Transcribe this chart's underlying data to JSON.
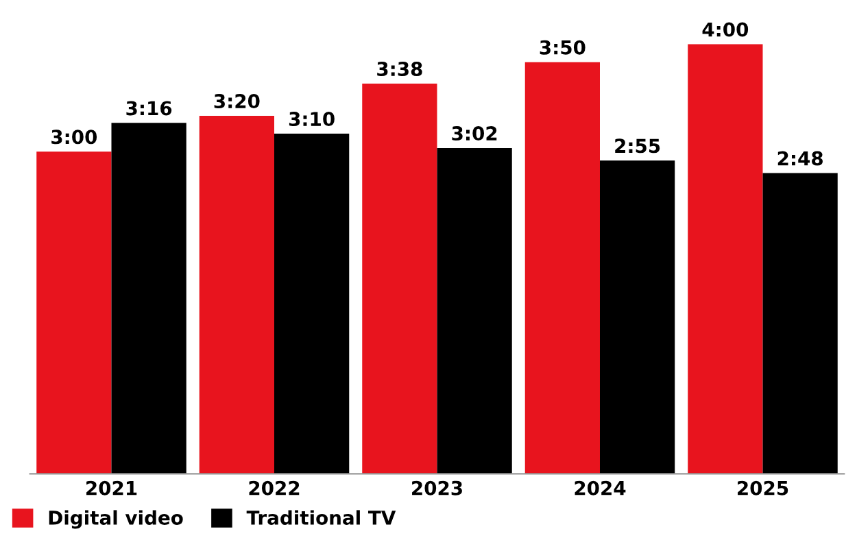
{
  "chart_data": {
    "type": "bar",
    "categories": [
      "2021",
      "2022",
      "2023",
      "2024",
      "2025"
    ],
    "series": [
      {
        "name": "Digital video",
        "color": "#e8141e",
        "values": [
          3.0,
          3.333,
          3.633,
          3.833,
          4.0
        ],
        "value_labels": [
          "3:00",
          "3:20",
          "3:38",
          "3:50",
          "4:00"
        ]
      },
      {
        "name": "Traditional TV",
        "color": "#000000",
        "values": [
          3.267,
          3.167,
          3.033,
          2.917,
          2.8
        ],
        "value_labels": [
          "3:16",
          "3:10",
          "3:02",
          "2:55",
          "2:48"
        ]
      }
    ],
    "legend": "bottom left",
    "grid": false
  }
}
